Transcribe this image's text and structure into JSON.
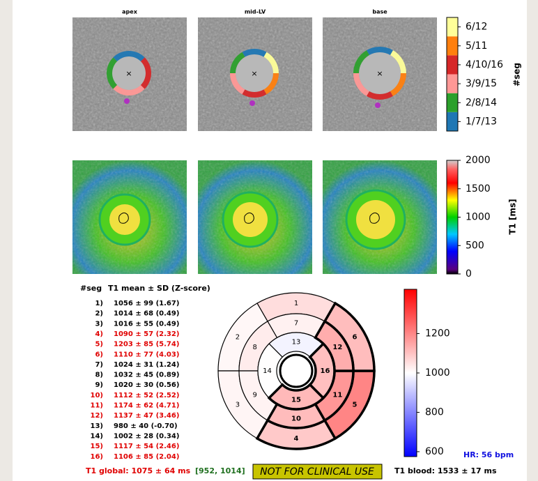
{
  "slices": [
    "apex",
    "mid-LV",
    "base"
  ],
  "segment_colorbar": {
    "labels": [
      "1/7/13",
      "2/8/14",
      "3/9/15",
      "4/10/16",
      "5/11",
      "6/12"
    ],
    "colors": [
      "#1f77b4",
      "#2ca02c",
      "#ff9896",
      "#d62728",
      "#ff7f0e",
      "#ffff99"
    ],
    "title": "#seg"
  },
  "t1_colorbar": {
    "lim": [
      0,
      2000
    ],
    "ticks": [
      0,
      500,
      1000,
      1500,
      2000
    ],
    "title": "T1 [ms]"
  },
  "table": {
    "header": [
      "#seg",
      "T1 mean ± SD (Z-score)"
    ],
    "rows": [
      [
        "1)",
        "1056 ± 99 (1.67)"
      ],
      [
        "2)",
        "1014 ± 68 (0.49)"
      ],
      [
        "3)",
        "1016 ± 55 (0.49)"
      ],
      [
        "4)",
        "1090 ± 57 (2.32)"
      ],
      [
        "5)",
        "1203 ± 85 (5.74)"
      ],
      [
        "6)",
        "1110 ± 77 (4.03)"
      ],
      [
        "7)",
        "1024 ± 31 (1.24)"
      ],
      [
        "8)",
        "1032 ± 45 (0.89)"
      ],
      [
        "9)",
        "1020 ± 30 (0.56)"
      ],
      [
        "10)",
        "1112 ± 52 (2.52)"
      ],
      [
        "11)",
        "1174 ± 62 (4.71)"
      ],
      [
        "12)",
        "1137 ± 47 (3.46)"
      ],
      [
        "13)",
        "980 ± 40 (-0.70)"
      ],
      [
        "14)",
        "1002 ± 28 (0.34)"
      ],
      [
        "15)",
        "1117 ± 54 (2.46)"
      ],
      [
        "16)",
        "1106 ± 85 (2.04)"
      ]
    ],
    "abnormal": [
      false,
      false,
      false,
      true,
      true,
      true,
      false,
      false,
      false,
      true,
      true,
      true,
      false,
      false,
      true,
      true
    ]
  },
  "bullseye": {
    "type": "bullseye",
    "labels": [
      "1",
      "2",
      "3",
      "4",
      "5",
      "6",
      "7",
      "8",
      "9",
      "10",
      "11",
      "12",
      "13",
      "14",
      "15",
      "16"
    ],
    "values": [
      1056,
      1014,
      1016,
      1090,
      1203,
      1110,
      1024,
      1032,
      1020,
      1112,
      1174,
      1137,
      980,
      1002,
      1117,
      1106
    ],
    "clim": [
      575,
      1425
    ],
    "ticks": [
      600,
      800,
      1000,
      1200
    ],
    "colormap": "bwr"
  },
  "footer": {
    "global": "T1 global: 1075 ± 64 ms",
    "range": "[952, 1014]",
    "warning": "NOT FOR CLINICAL USE",
    "blood": "T1 blood: 1533 ± 17 ms",
    "hr": "HR: 56 bpm"
  }
}
